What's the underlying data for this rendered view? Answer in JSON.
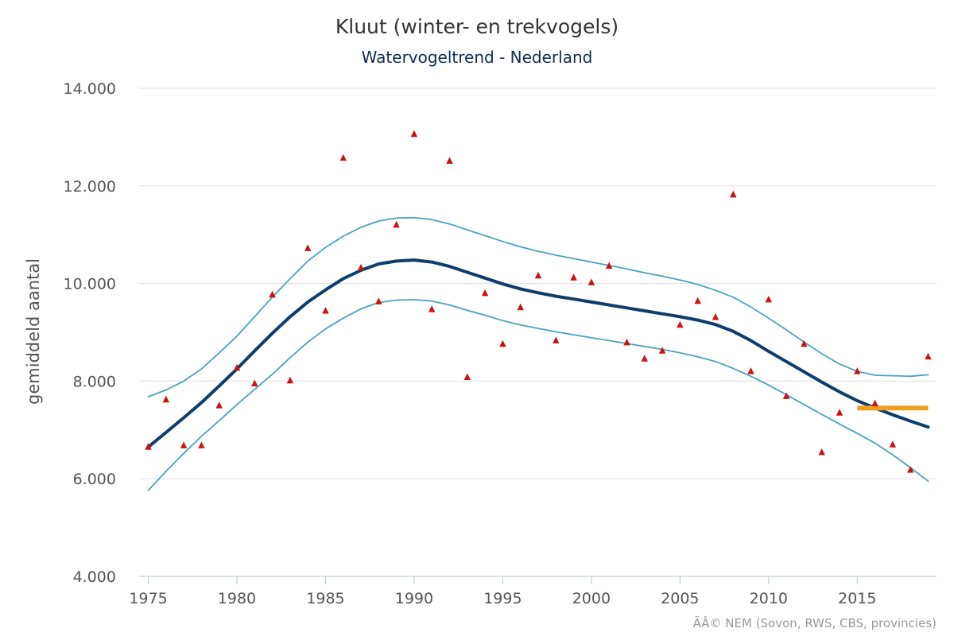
{
  "chart_data": {
    "type": "line",
    "title": "Kluut (winter- en trekvogels)",
    "subtitle": "Watervogeltrend - Nederland",
    "ylabel": "gemiddeld aantal",
    "xlabel": "",
    "xlim": [
      1975,
      2019
    ],
    "ylim": [
      4000,
      14000
    ],
    "x_ticks": [
      1975,
      1980,
      1985,
      1990,
      1995,
      2000,
      2005,
      2010,
      2015
    ],
    "x_tick_labels": [
      "1975",
      "1980",
      "1985",
      "1990",
      "1995",
      "2000",
      "2005",
      "2010",
      "2015"
    ],
    "y_ticks": [
      4000,
      6000,
      8000,
      10000,
      12000,
      14000
    ],
    "y_tick_labels": [
      "4.000",
      "6.000",
      "8.000",
      "10.000",
      "12.000",
      "14.000"
    ],
    "grid": "horizontal",
    "credit": "ÃÂ© NEM (Sovon, RWS, CBS, provincies)",
    "colors": {
      "trend": "#0d3d6b",
      "band": "#4aa3c0",
      "markers": "#cc1111",
      "reference": "#f0a020",
      "grid": "#e0e0e0"
    },
    "series": [
      {
        "type": "line",
        "role": "trend",
        "x": [
          1975,
          1976,
          1977,
          1978,
          1979,
          1980,
          1981,
          1982,
          1983,
          1984,
          1985,
          1986,
          1987,
          1988,
          1989,
          1990,
          1991,
          1992,
          1993,
          1994,
          1995,
          1996,
          1997,
          1998,
          1999,
          2000,
          2001,
          2002,
          2003,
          2004,
          2005,
          2006,
          2007,
          2008,
          2009,
          2010,
          2011,
          2012,
          2013,
          2014,
          2015,
          2016,
          2017,
          2018,
          2019
        ],
        "values": [
          6650,
          6950,
          7250,
          7560,
          7900,
          8250,
          8620,
          8980,
          9320,
          9620,
          9870,
          10100,
          10270,
          10400,
          10460,
          10480,
          10440,
          10350,
          10230,
          10110,
          9990,
          9890,
          9810,
          9740,
          9680,
          9620,
          9560,
          9500,
          9440,
          9380,
          9320,
          9250,
          9160,
          9020,
          8830,
          8610,
          8400,
          8190,
          7980,
          7780,
          7600,
          7450,
          7310,
          7180,
          7060
        ]
      },
      {
        "type": "line",
        "role": "upper-bound",
        "x": [
          1975,
          1976,
          1977,
          1978,
          1979,
          1980,
          1981,
          1982,
          1983,
          1984,
          1985,
          1986,
          1987,
          1988,
          1989,
          1990,
          1991,
          1992,
          1993,
          1994,
          1995,
          1996,
          1997,
          1998,
          1999,
          2000,
          2001,
          2002,
          2003,
          2004,
          2005,
          2006,
          2007,
          2008,
          2009,
          2010,
          2011,
          2012,
          2013,
          2014,
          2015,
          2016,
          2017,
          2018,
          2019
        ],
        "values": [
          7680,
          7820,
          8000,
          8250,
          8580,
          8920,
          9320,
          9720,
          10100,
          10460,
          10740,
          10970,
          11150,
          11280,
          11340,
          11350,
          11310,
          11220,
          11100,
          10980,
          10860,
          10750,
          10660,
          10580,
          10510,
          10440,
          10370,
          10300,
          10220,
          10150,
          10070,
          9980,
          9860,
          9720,
          9520,
          9290,
          9050,
          8800,
          8560,
          8350,
          8200,
          8120,
          8110,
          8100,
          8130
        ]
      },
      {
        "type": "line",
        "role": "lower-bound",
        "x": [
          1975,
          1976,
          1977,
          1978,
          1979,
          1980,
          1981,
          1982,
          1983,
          1984,
          1985,
          1986,
          1987,
          1988,
          1989,
          1990,
          1991,
          1992,
          1993,
          1994,
          1995,
          1996,
          1997,
          1998,
          1999,
          2000,
          2001,
          2002,
          2003,
          2004,
          2005,
          2006,
          2007,
          2008,
          2009,
          2010,
          2011,
          2012,
          2013,
          2014,
          2015,
          2016,
          2017,
          2018,
          2019
        ],
        "values": [
          5760,
          6150,
          6520,
          6870,
          7190,
          7520,
          7830,
          8140,
          8480,
          8800,
          9070,
          9290,
          9480,
          9610,
          9660,
          9670,
          9640,
          9560,
          9450,
          9350,
          9240,
          9150,
          9080,
          9010,
          8950,
          8890,
          8830,
          8770,
          8710,
          8650,
          8580,
          8500,
          8400,
          8260,
          8100,
          7920,
          7720,
          7520,
          7320,
          7120,
          6930,
          6730,
          6490,
          6230,
          5950
        ]
      },
      {
        "type": "scatter",
        "role": "annual counts",
        "x": [
          1975,
          1976,
          1977,
          1978,
          1979,
          1980,
          1981,
          1982,
          1983,
          1984,
          1985,
          1986,
          1987,
          1988,
          1989,
          1990,
          1991,
          1992,
          1993,
          1994,
          1995,
          1996,
          1997,
          1998,
          1999,
          2000,
          2001,
          2002,
          2003,
          2004,
          2005,
          2006,
          2007,
          2008,
          2009,
          2010,
          2011,
          2012,
          2013,
          2014,
          2015,
          2016,
          2017,
          2018,
          2019
        ],
        "values": [
          6650,
          7620,
          6680,
          6680,
          7500,
          8270,
          7950,
          9770,
          8010,
          10720,
          9440,
          12570,
          10320,
          9630,
          11200,
          13060,
          9470,
          12510,
          8080,
          9800,
          8760,
          9510,
          10160,
          8830,
          10120,
          10020,
          10360,
          8790,
          8460,
          8620,
          9150,
          9640,
          9310,
          11820,
          8200,
          9670,
          7690,
          8760,
          6540,
          7350,
          8200,
          7540,
          6700,
          6180,
          8500
        ]
      },
      {
        "type": "line",
        "role": "reference",
        "x": [
          2015,
          2019
        ],
        "values": [
          7450,
          7450
        ]
      }
    ]
  }
}
